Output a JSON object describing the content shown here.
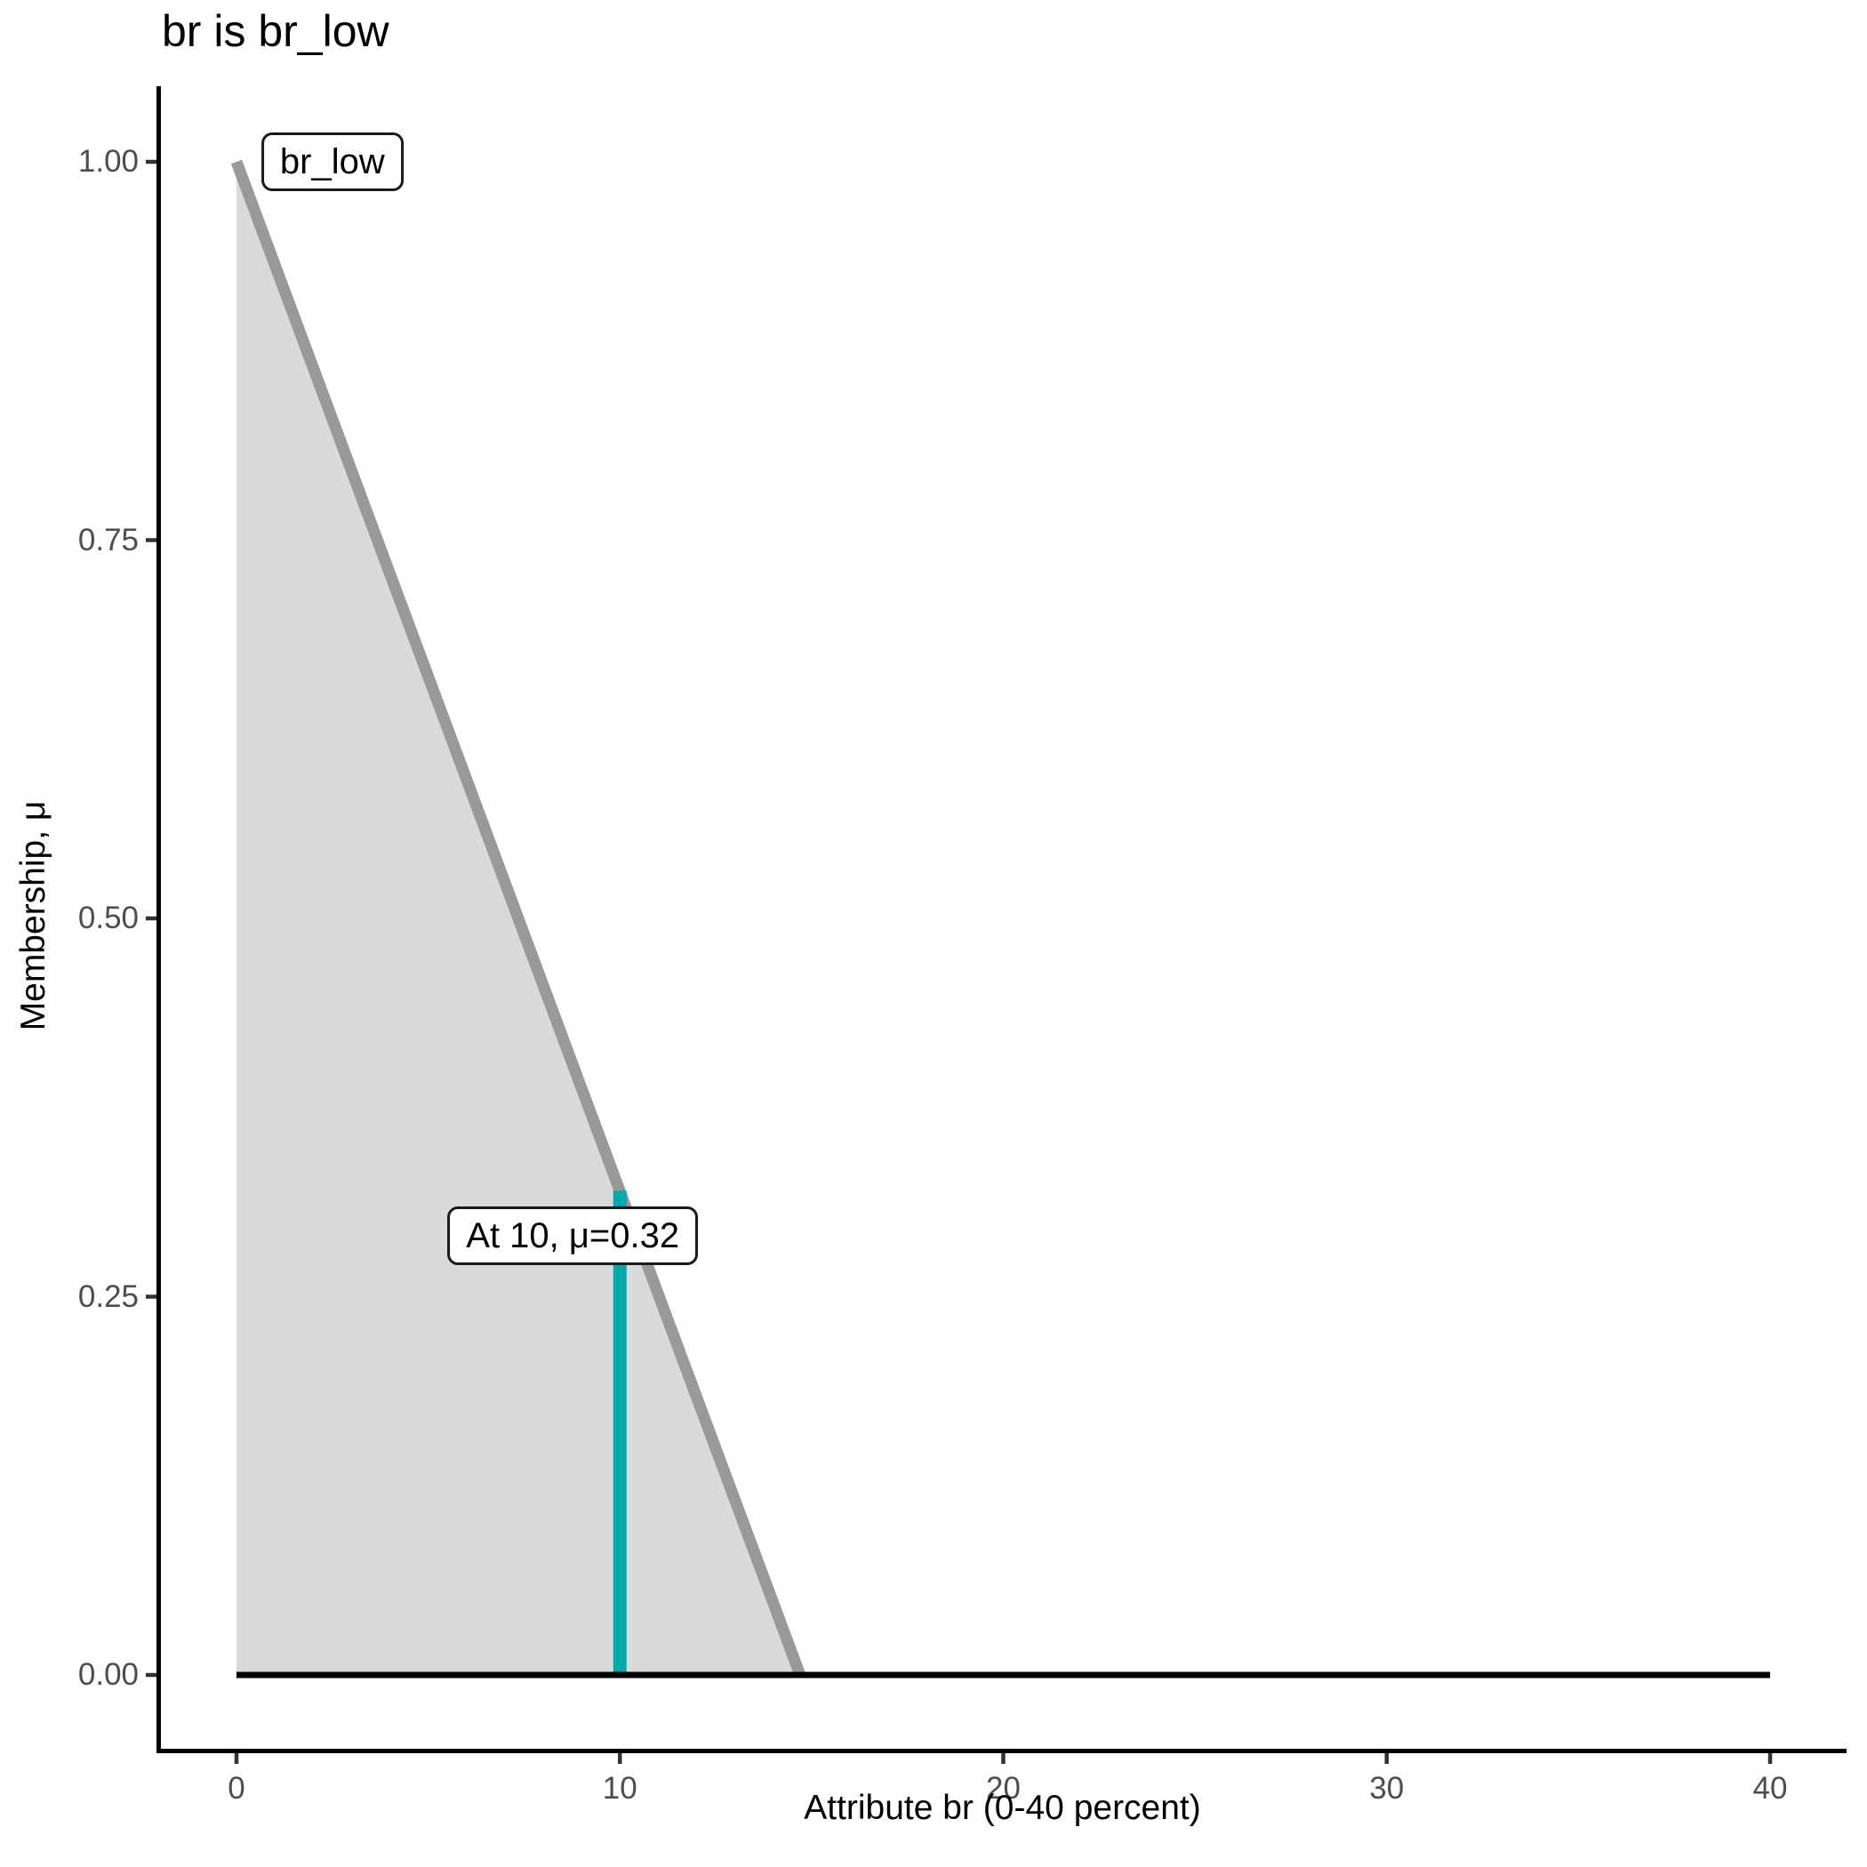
{
  "title": "br is br_low",
  "axes": {
    "x": {
      "label": "Attribute br (0-40 percent)",
      "range": [
        0,
        40
      ],
      "ticks": [
        {
          "label": "0",
          "value": 0
        },
        {
          "label": "10",
          "value": 10
        },
        {
          "label": "20",
          "value": 20
        },
        {
          "label": "30",
          "value": 30
        },
        {
          "label": "40",
          "value": 40
        }
      ]
    },
    "y": {
      "label": "Membership, μ",
      "range": [
        0,
        1
      ],
      "ticks": [
        {
          "label": "0.00",
          "value": 0
        },
        {
          "label": "0.25",
          "value": 0.25
        },
        {
          "label": "0.50",
          "value": 0.5
        },
        {
          "label": "0.75",
          "value": 0.75
        },
        {
          "label": "1.00",
          "value": 1
        }
      ]
    }
  },
  "chart_data": {
    "type": "area",
    "title": "br is br_low",
    "xlabel": "Attribute br (0-40 percent)",
    "ylabel": "Membership, μ",
    "xlim": [
      0,
      40
    ],
    "ylim": [
      0,
      1
    ],
    "grid": false,
    "series": [
      {
        "name": "br_low-membership-function",
        "x": [
          0,
          14.7
        ],
        "y": [
          1,
          0
        ],
        "color": "#999999",
        "fill": "#DADADA",
        "width": 13
      },
      {
        "name": "evaluation-line-at-10",
        "x": [
          10,
          10
        ],
        "y": [
          0,
          0.32
        ],
        "color": "#00A9AC",
        "width": 15
      },
      {
        "name": "zero-membership-baseline",
        "x": [
          0,
          40
        ],
        "y": [
          0,
          0
        ],
        "color": "#000000",
        "width": 7
      }
    ],
    "annotations": [
      {
        "name": "set-label",
        "text": "br_low",
        "x": 2.5,
        "y": 1.0
      },
      {
        "name": "evaluation-label",
        "text": "At 10, μ=0.32",
        "x": 8.77,
        "y": 0.29
      }
    ],
    "colors": {
      "axis": "#000000",
      "tick": "#333333",
      "tick_label": "#4D4D4D",
      "evaluation": "#00A9AC",
      "membership_line": "#999999",
      "membership_fill": "#DADADA"
    }
  }
}
